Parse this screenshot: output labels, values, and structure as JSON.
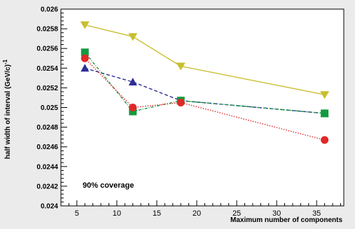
{
  "chart_data": {
    "type": "line",
    "title": "",
    "xlabel": "Maximum number of components",
    "ylabel": "half width of interval (GeV/c)",
    "ylabel_superscript": "-1",
    "annotation": "90% coverage",
    "xlim": [
      3,
      38.4
    ],
    "ylim": [
      0.024,
      0.026
    ],
    "x_ticks": [
      5,
      10,
      15,
      20,
      25,
      30,
      35
    ],
    "y_ticks": [
      0.024,
      0.0242,
      0.0244,
      0.0246,
      0.0248,
      0.025,
      0.0252,
      0.0254,
      0.0256,
      0.0258,
      0.026
    ],
    "y_tick_labels": [
      "0.024",
      "0.0242",
      "0.0244",
      "0.0246",
      "0.0248",
      "0.025",
      "0.0252",
      "0.0254",
      "0.0256",
      "0.0258",
      "0.026"
    ],
    "grid": false,
    "legend": "none",
    "series": [
      {
        "x": [
          6,
          12,
          18,
          36
        ],
        "values": [
          0.02584,
          0.02572,
          0.02542,
          0.02513
        ],
        "color": "#c8be2e",
        "marker": "triangle-down",
        "dash": "solid"
      },
      {
        "x": [
          6,
          12,
          18,
          36
        ],
        "values": [
          0.0254,
          0.02526,
          0.02507,
          0.02494
        ],
        "color": "#2d2d96",
        "marker": "triangle-up",
        "dash": "dashed"
      },
      {
        "x": [
          6,
          12,
          18,
          36
        ],
        "values": [
          0.02556,
          0.02496,
          0.02507,
          0.02494
        ],
        "color": "#159a3f",
        "marker": "square",
        "dash": "dash-dot"
      },
      {
        "x": [
          6,
          12,
          18,
          36
        ],
        "values": [
          0.0255,
          0.025,
          0.02505,
          0.02467
        ],
        "color": "#e02828",
        "marker": "circle",
        "dash": "dotted"
      }
    ]
  }
}
